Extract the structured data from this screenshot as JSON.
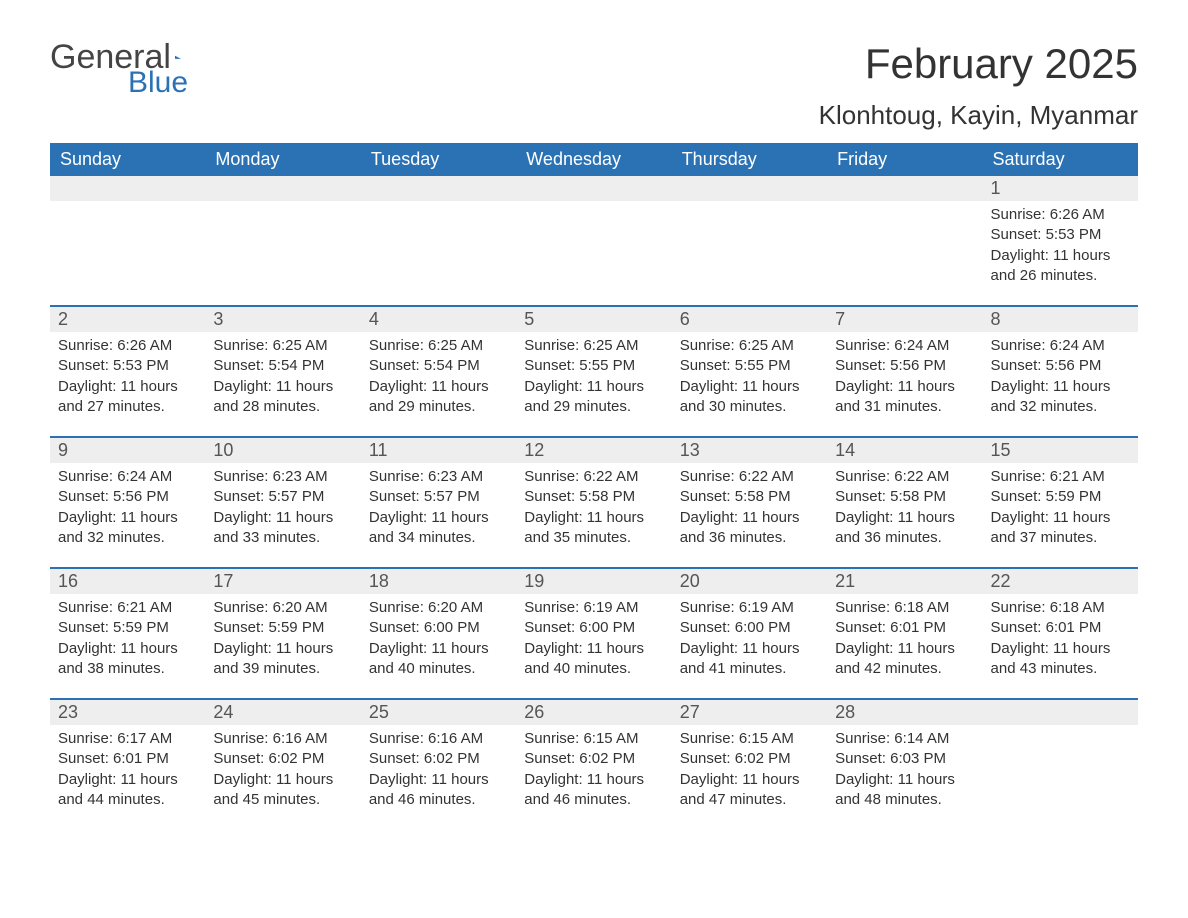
{
  "logo": {
    "text1": "General",
    "text2": "Blue"
  },
  "title": "February 2025",
  "location": "Klonhtoug, Kayin, Myanmar",
  "colors": {
    "header_bg": "#2b72b5",
    "header_fg": "#ffffff",
    "daynum_bg": "#eeeeee",
    "week_border": "#2b72b5",
    "text": "#333333"
  },
  "day_headers": [
    "Sunday",
    "Monday",
    "Tuesday",
    "Wednesday",
    "Thursday",
    "Friday",
    "Saturday"
  ],
  "weeks": [
    [
      {
        "n": "",
        "sr": "",
        "ss": "",
        "dl": ""
      },
      {
        "n": "",
        "sr": "",
        "ss": "",
        "dl": ""
      },
      {
        "n": "",
        "sr": "",
        "ss": "",
        "dl": ""
      },
      {
        "n": "",
        "sr": "",
        "ss": "",
        "dl": ""
      },
      {
        "n": "",
        "sr": "",
        "ss": "",
        "dl": ""
      },
      {
        "n": "",
        "sr": "",
        "ss": "",
        "dl": ""
      },
      {
        "n": "1",
        "sr": "Sunrise: 6:26 AM",
        "ss": "Sunset: 5:53 PM",
        "dl": "Daylight: 11 hours and 26 minutes."
      }
    ],
    [
      {
        "n": "2",
        "sr": "Sunrise: 6:26 AM",
        "ss": "Sunset: 5:53 PM",
        "dl": "Daylight: 11 hours and 27 minutes."
      },
      {
        "n": "3",
        "sr": "Sunrise: 6:25 AM",
        "ss": "Sunset: 5:54 PM",
        "dl": "Daylight: 11 hours and 28 minutes."
      },
      {
        "n": "4",
        "sr": "Sunrise: 6:25 AM",
        "ss": "Sunset: 5:54 PM",
        "dl": "Daylight: 11 hours and 29 minutes."
      },
      {
        "n": "5",
        "sr": "Sunrise: 6:25 AM",
        "ss": "Sunset: 5:55 PM",
        "dl": "Daylight: 11 hours and 29 minutes."
      },
      {
        "n": "6",
        "sr": "Sunrise: 6:25 AM",
        "ss": "Sunset: 5:55 PM",
        "dl": "Daylight: 11 hours and 30 minutes."
      },
      {
        "n": "7",
        "sr": "Sunrise: 6:24 AM",
        "ss": "Sunset: 5:56 PM",
        "dl": "Daylight: 11 hours and 31 minutes."
      },
      {
        "n": "8",
        "sr": "Sunrise: 6:24 AM",
        "ss": "Sunset: 5:56 PM",
        "dl": "Daylight: 11 hours and 32 minutes."
      }
    ],
    [
      {
        "n": "9",
        "sr": "Sunrise: 6:24 AM",
        "ss": "Sunset: 5:56 PM",
        "dl": "Daylight: 11 hours and 32 minutes."
      },
      {
        "n": "10",
        "sr": "Sunrise: 6:23 AM",
        "ss": "Sunset: 5:57 PM",
        "dl": "Daylight: 11 hours and 33 minutes."
      },
      {
        "n": "11",
        "sr": "Sunrise: 6:23 AM",
        "ss": "Sunset: 5:57 PM",
        "dl": "Daylight: 11 hours and 34 minutes."
      },
      {
        "n": "12",
        "sr": "Sunrise: 6:22 AM",
        "ss": "Sunset: 5:58 PM",
        "dl": "Daylight: 11 hours and 35 minutes."
      },
      {
        "n": "13",
        "sr": "Sunrise: 6:22 AM",
        "ss": "Sunset: 5:58 PM",
        "dl": "Daylight: 11 hours and 36 minutes."
      },
      {
        "n": "14",
        "sr": "Sunrise: 6:22 AM",
        "ss": "Sunset: 5:58 PM",
        "dl": "Daylight: 11 hours and 36 minutes."
      },
      {
        "n": "15",
        "sr": "Sunrise: 6:21 AM",
        "ss": "Sunset: 5:59 PM",
        "dl": "Daylight: 11 hours and 37 minutes."
      }
    ],
    [
      {
        "n": "16",
        "sr": "Sunrise: 6:21 AM",
        "ss": "Sunset: 5:59 PM",
        "dl": "Daylight: 11 hours and 38 minutes."
      },
      {
        "n": "17",
        "sr": "Sunrise: 6:20 AM",
        "ss": "Sunset: 5:59 PM",
        "dl": "Daylight: 11 hours and 39 minutes."
      },
      {
        "n": "18",
        "sr": "Sunrise: 6:20 AM",
        "ss": "Sunset: 6:00 PM",
        "dl": "Daylight: 11 hours and 40 minutes."
      },
      {
        "n": "19",
        "sr": "Sunrise: 6:19 AM",
        "ss": "Sunset: 6:00 PM",
        "dl": "Daylight: 11 hours and 40 minutes."
      },
      {
        "n": "20",
        "sr": "Sunrise: 6:19 AM",
        "ss": "Sunset: 6:00 PM",
        "dl": "Daylight: 11 hours and 41 minutes."
      },
      {
        "n": "21",
        "sr": "Sunrise: 6:18 AM",
        "ss": "Sunset: 6:01 PM",
        "dl": "Daylight: 11 hours and 42 minutes."
      },
      {
        "n": "22",
        "sr": "Sunrise: 6:18 AM",
        "ss": "Sunset: 6:01 PM",
        "dl": "Daylight: 11 hours and 43 minutes."
      }
    ],
    [
      {
        "n": "23",
        "sr": "Sunrise: 6:17 AM",
        "ss": "Sunset: 6:01 PM",
        "dl": "Daylight: 11 hours and 44 minutes."
      },
      {
        "n": "24",
        "sr": "Sunrise: 6:16 AM",
        "ss": "Sunset: 6:02 PM",
        "dl": "Daylight: 11 hours and 45 minutes."
      },
      {
        "n": "25",
        "sr": "Sunrise: 6:16 AM",
        "ss": "Sunset: 6:02 PM",
        "dl": "Daylight: 11 hours and 46 minutes."
      },
      {
        "n": "26",
        "sr": "Sunrise: 6:15 AM",
        "ss": "Sunset: 6:02 PM",
        "dl": "Daylight: 11 hours and 46 minutes."
      },
      {
        "n": "27",
        "sr": "Sunrise: 6:15 AM",
        "ss": "Sunset: 6:02 PM",
        "dl": "Daylight: 11 hours and 47 minutes."
      },
      {
        "n": "28",
        "sr": "Sunrise: 6:14 AM",
        "ss": "Sunset: 6:03 PM",
        "dl": "Daylight: 11 hours and 48 minutes."
      },
      {
        "n": "",
        "sr": "",
        "ss": "",
        "dl": ""
      }
    ]
  ]
}
